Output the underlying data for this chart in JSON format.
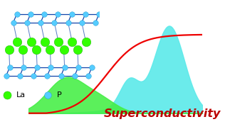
{
  "background_color": "#ffffff",
  "cyan_fill_color": "#5EEAEA",
  "green_fill_color": "#44EE44",
  "red_line_color": "#EE0000",
  "text_superconductivity": "Superconductivity",
  "text_color": "#BB0000",
  "text_fontsize": 11.5,
  "la_color": "#33FF00",
  "p_color": "#55CCFF",
  "la_label": "La",
  "p_label": "P",
  "legend_fontsize": 8,
  "bond_color": "#1144AA",
  "structure_atom_p_color": "#55CCFF",
  "structure_atom_la_color": "#33FF00"
}
